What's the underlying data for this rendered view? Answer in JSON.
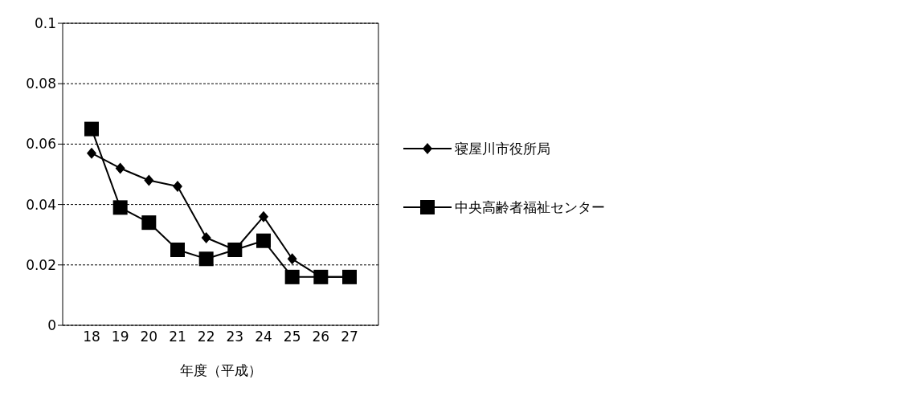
{
  "chart_data": {
    "type": "line",
    "xlabel": "年度（平成）",
    "categories": [
      "18",
      "19",
      "20",
      "21",
      "22",
      "23",
      "24",
      "25",
      "26",
      "27"
    ],
    "series": [
      {
        "name": "寝屋川市役所局",
        "color": "#000000",
        "marker": "diamond",
        "values": [
          0.057,
          0.052,
          0.048,
          0.046,
          0.029,
          0.025,
          0.036,
          0.022,
          0.016,
          0.016
        ]
      },
      {
        "name": "中央高齢者福祉センター",
        "color": "#000000",
        "marker": "square",
        "values": [
          0.065,
          0.039,
          0.034,
          0.025,
          0.022,
          0.025,
          0.028,
          0.016,
          0.016,
          0.016
        ]
      }
    ],
    "ylim": [
      0,
      0.1
    ],
    "yticks": [
      0,
      0.02,
      0.04,
      0.06,
      0.08,
      0.1
    ],
    "grid": "y",
    "legend": "right",
    "line_style": "solid"
  }
}
